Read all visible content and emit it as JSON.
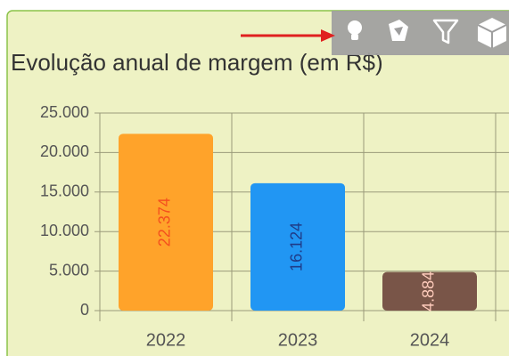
{
  "chart_data": {
    "type": "bar",
    "title": "Evolução anual de margem (em R$)",
    "categories": [
      "2022",
      "2023",
      "2024"
    ],
    "values": [
      22374,
      16124,
      4884
    ],
    "value_labels": [
      "22.374",
      "16.124",
      "4.884"
    ],
    "colors": [
      "#ffa32a",
      "#2196f3",
      "#795548"
    ],
    "label_colors": [
      "#f4511e",
      "#1f3c88",
      "#ffccbc"
    ],
    "ylim": [
      0,
      25000
    ],
    "yticks": [
      0,
      {
        "value": 5000,
        "label": "5.000"
      },
      {
        "value": 10000,
        "label": "10.000"
      },
      {
        "value": 15000,
        "label": "15.000"
      },
      {
        "value": 20000,
        "label": "20.000"
      },
      {
        "value": 25000,
        "label": "25.000"
      }
    ],
    "grid": true
  }
}
